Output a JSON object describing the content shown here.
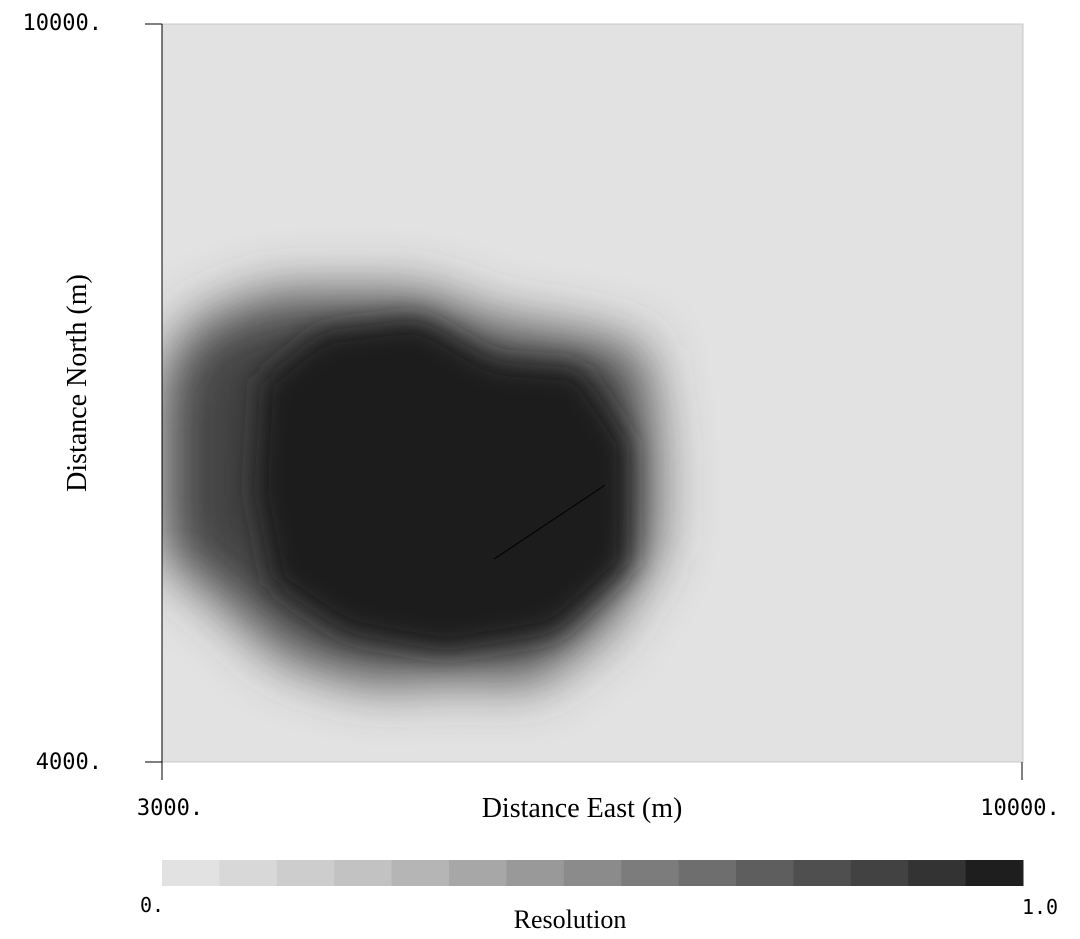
{
  "chart_data": {
    "type": "heatmap",
    "xlabel": "Distance East (m)",
    "ylabel": "Distance North (m)",
    "x_ticks": [
      "3000.",
      "10000."
    ],
    "y_ticks": [
      "10000.",
      "4000."
    ],
    "xlim": [
      3000,
      10000
    ],
    "ylim": [
      4000,
      10000
    ],
    "grid": false,
    "colorbar": {
      "label": "Resolution",
      "min_label": "0.",
      "max_label": "1.0",
      "range": [
        0.0,
        1.0
      ],
      "levels": 15,
      "colors": [
        "#e2e2e2",
        "#d8d8d8",
        "#cdcdcd",
        "#c2c2c2",
        "#b5b5b5",
        "#a7a7a7",
        "#999999",
        "#8b8b8b",
        "#7c7c7c",
        "#6e6e6e",
        "#5e5e5e",
        "#4f4f4f",
        "#424242",
        "#333333",
        "#1e1e1e"
      ]
    },
    "background_value": 0.0,
    "high_resolution_outline": [
      [
        3000,
        7100
      ],
      [
        3250,
        7550
      ],
      [
        3900,
        7800
      ],
      [
        5100,
        7800
      ],
      [
        5750,
        7550
      ],
      [
        6200,
        7500
      ],
      [
        6900,
        7350
      ],
      [
        7000,
        6600
      ],
      [
        7000,
        5750
      ],
      [
        6600,
        5100
      ],
      [
        6000,
        4650
      ],
      [
        5500,
        4700
      ],
      [
        4700,
        4650
      ],
      [
        4000,
        4850
      ],
      [
        3450,
        5350
      ],
      [
        3000,
        5700
      ],
      [
        3000,
        6400
      ]
    ],
    "core_outline": [
      [
        3800,
        7100
      ],
      [
        4300,
        7500
      ],
      [
        5100,
        7600
      ],
      [
        5700,
        7250
      ],
      [
        6400,
        7200
      ],
      [
        6800,
        6600
      ],
      [
        6800,
        5600
      ],
      [
        6200,
        5050
      ],
      [
        5300,
        4900
      ],
      [
        4500,
        5050
      ],
      [
        3900,
        5450
      ],
      [
        3750,
        6200
      ]
    ],
    "feature_line": [
      [
        5700,
        5650
      ],
      [
        6600,
        6250
      ]
    ]
  }
}
